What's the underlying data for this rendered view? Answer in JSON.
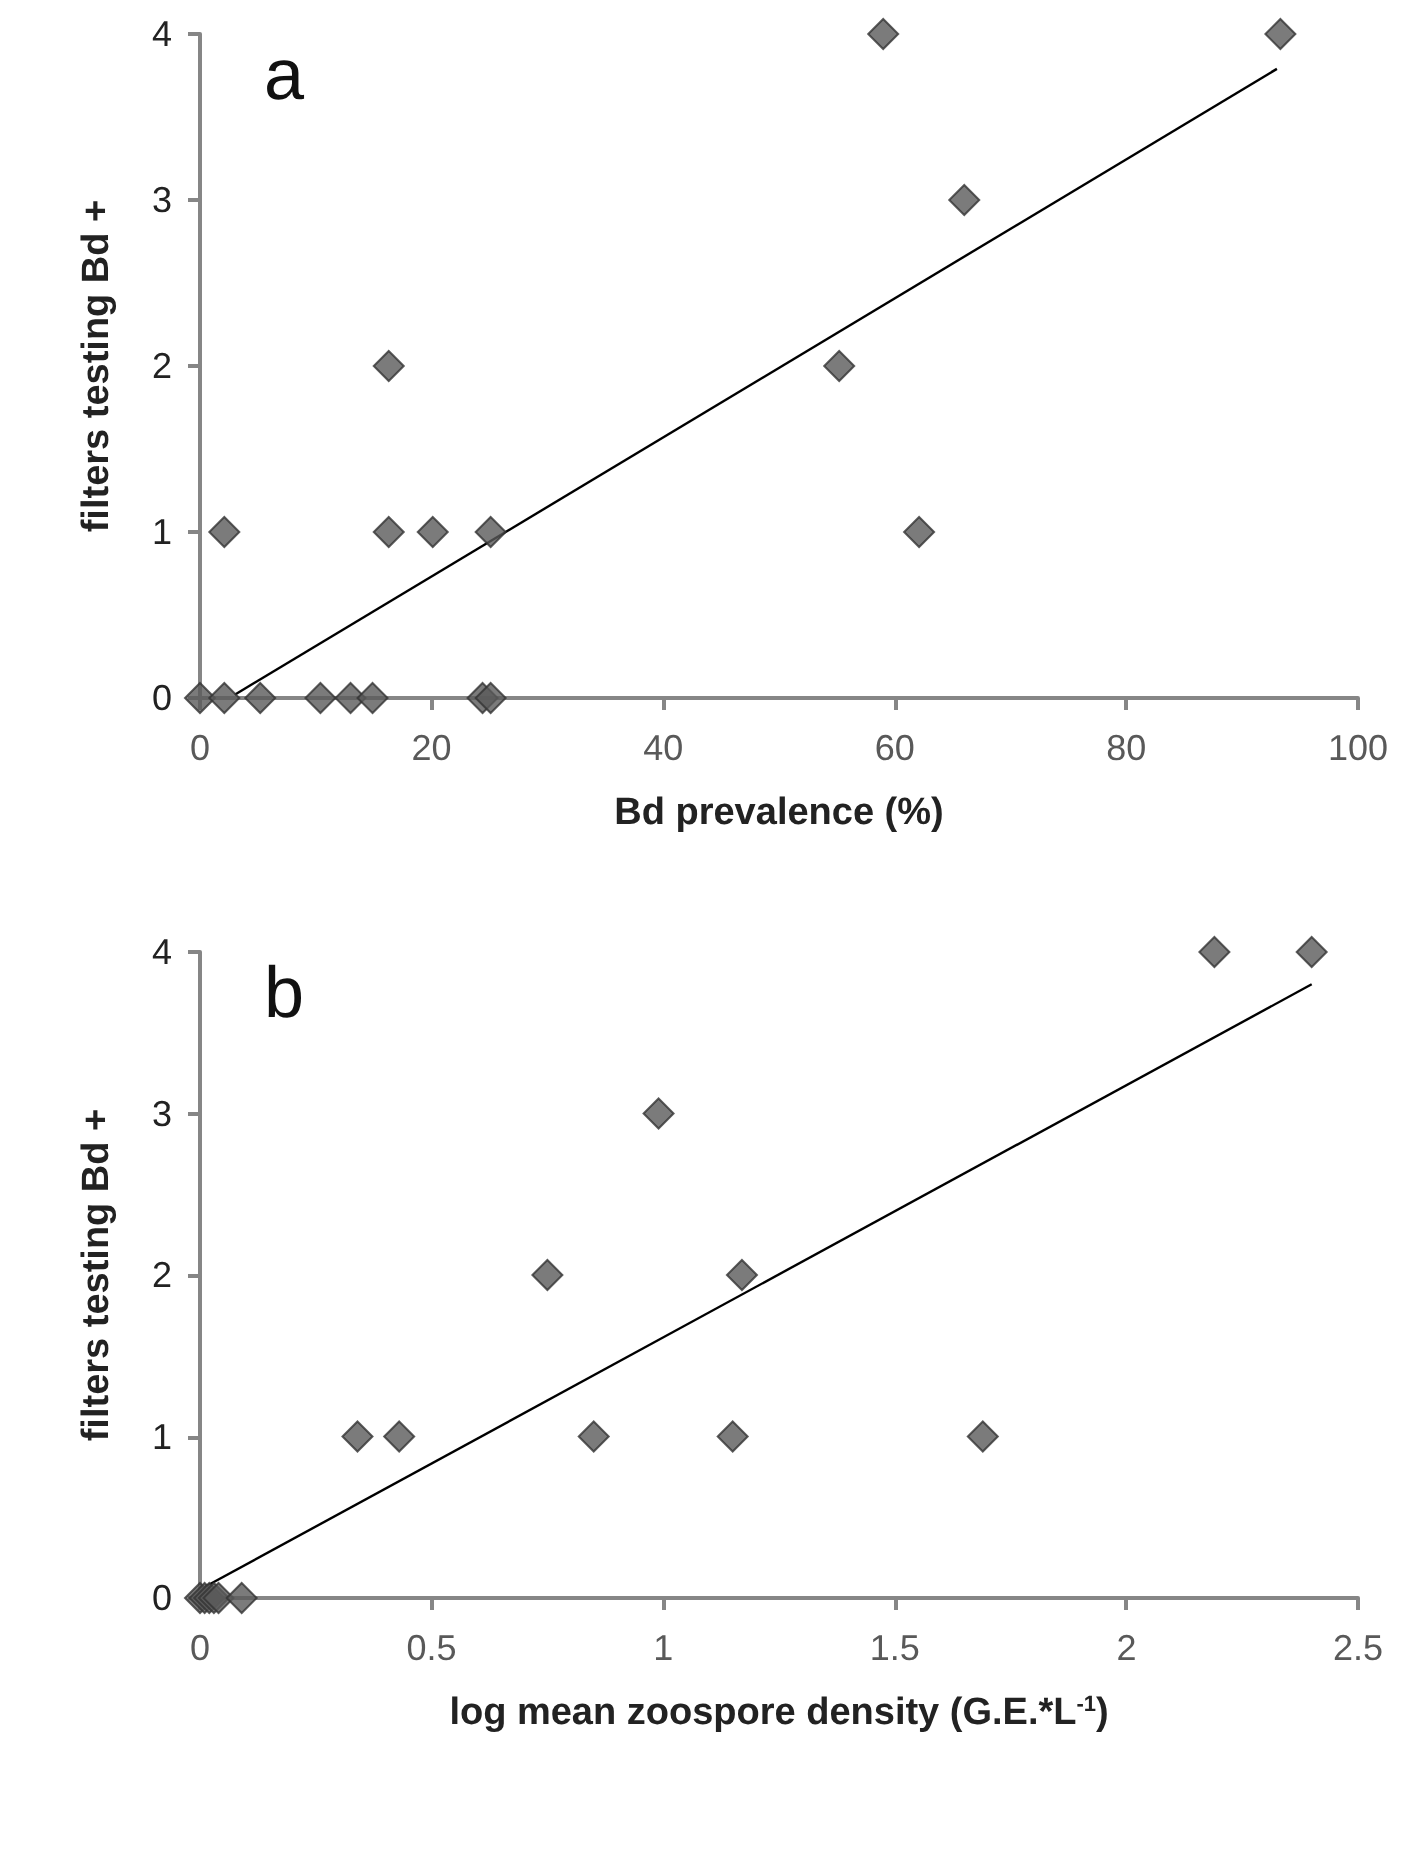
{
  "chart_data": [
    {
      "type": "scatter",
      "xlabel": "Bd prevalence (%)",
      "ylabel": "filters testing Bd +",
      "annotations": [
        "a"
      ],
      "xlim": [
        0,
        100
      ],
      "xticks": [
        0,
        20,
        40,
        60,
        80,
        100
      ],
      "ylim": [
        0,
        4
      ],
      "yticks": [
        0,
        1,
        2,
        3,
        4
      ],
      "grid": false,
      "marker": "diamond",
      "series": [
        {
          "color": "#5a5a5a",
          "x": [
            59.0,
            93.3,
            66.0,
            55.2,
            16.3,
            2.1,
            16.3,
            20.1,
            25.1,
            62.1,
            0,
            2.1,
            5.2,
            10.4,
            13.0,
            14.9,
            24.4,
            25.1
          ],
          "values": [
            4,
            4,
            3,
            2,
            2,
            1,
            1,
            1,
            1,
            1,
            0,
            0,
            0,
            0,
            0,
            0,
            0,
            0
          ]
        },
        {
          "type": "line",
          "color": "#000000",
          "marker": "none",
          "x": [
            3,
            93
          ],
          "values": [
            0.02,
            3.79
          ]
        }
      ]
    },
    {
      "type": "scatter",
      "xlabel": "log mean zoospore density (G.E.*L$^{-1}$)",
      "ylabel": "filters testing Bd +",
      "annotations": [
        "b"
      ],
      "xlim": [
        0,
        2.5
      ],
      "xticks": [
        0,
        0.5,
        1,
        1.5,
        2,
        2.5
      ],
      "ylim": [
        0,
        4
      ],
      "yticks": [
        0,
        1,
        2,
        3,
        4
      ],
      "grid": false,
      "marker": "diamond",
      "series": [
        {
          "color": "#5a5a5a",
          "x": [
            2.19,
            2.4,
            0.99,
            0.75,
            1.17,
            0.34,
            0.43,
            0.85,
            1.15,
            1.69,
            0,
            0.01,
            0.02,
            0.03,
            0.04,
            0.09
          ],
          "values": [
            4,
            4,
            3,
            2,
            2,
            1,
            1,
            1,
            1,
            1,
            0,
            0,
            0,
            0,
            0,
            0
          ]
        },
        {
          "type": "line",
          "color": "#000000",
          "marker": "none",
          "x": [
            0.005,
            2.4
          ],
          "values": [
            0.06,
            3.8
          ]
        }
      ]
    }
  ]
}
